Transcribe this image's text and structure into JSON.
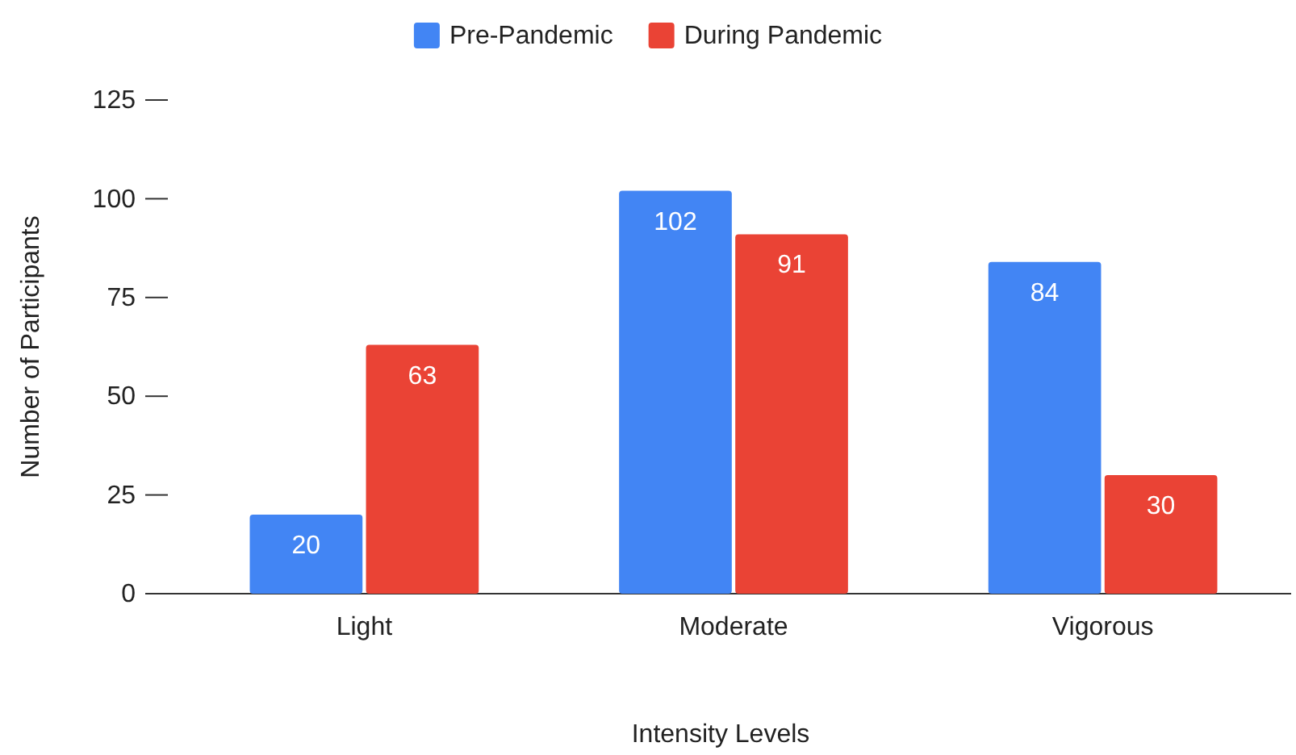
{
  "chart_data": {
    "type": "bar",
    "xlabel": "Intensity Levels",
    "ylabel": "Number of Participants",
    "categories": [
      "Light",
      "Moderate",
      "Vigorous"
    ],
    "series": [
      {
        "name": "Pre-Pandemic",
        "color": "#4285f4",
        "values": [
          20,
          102,
          84
        ]
      },
      {
        "name": "During Pandemic",
        "color": "#ea4335",
        "values": [
          63,
          91,
          30
        ]
      }
    ],
    "ylim": [
      0,
      125
    ],
    "yticks": [
      0,
      25,
      50,
      75,
      100,
      125
    ],
    "grid": false,
    "legend": "top",
    "data_labels": true
  }
}
